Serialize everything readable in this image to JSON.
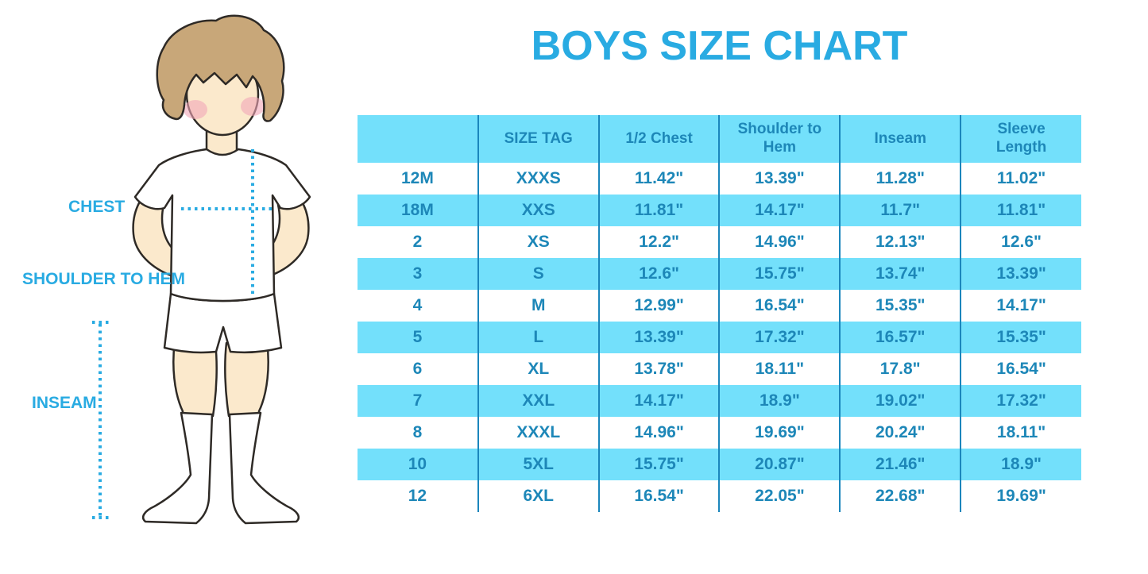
{
  "title": "BOYS SIZE CHART",
  "figure": {
    "labels": {
      "chest": "CHEST",
      "shoulder_to_hem": "SHOULDER TO HEM",
      "inseam": "INSEAM"
    }
  },
  "colors": {
    "accent_blue": "#29ABE2",
    "table_stripe": "#73E0FB",
    "table_text": "#1D87B8",
    "table_divider": "#1B86BC",
    "hair": "#C8A779",
    "skin": "#FBE9CC",
    "blush": "#F2A7B7"
  },
  "chart_data": {
    "type": "table",
    "title": "BOYS SIZE CHART",
    "columns": [
      "",
      "SIZE TAG",
      "1/2 Chest",
      "Shoulder to Hem",
      "Inseam",
      "Sleeve Length"
    ],
    "rows": [
      [
        "12M",
        "XXXS",
        "11.42\"",
        "13.39\"",
        "11.28\"",
        "11.02\""
      ],
      [
        "18M",
        "XXS",
        "11.81\"",
        "14.17\"",
        "11.7\"",
        "11.81\""
      ],
      [
        "2",
        "XS",
        "12.2\"",
        "14.96\"",
        "12.13\"",
        "12.6\""
      ],
      [
        "3",
        "S",
        "12.6\"",
        "15.75\"",
        "13.74\"",
        "13.39\""
      ],
      [
        "4",
        "M",
        "12.99\"",
        "16.54\"",
        "15.35\"",
        "14.17\""
      ],
      [
        "5",
        "L",
        "13.39\"",
        "17.32\"",
        "16.57\"",
        "15.35\""
      ],
      [
        "6",
        "XL",
        "13.78\"",
        "18.11\"",
        "17.8\"",
        "16.54\""
      ],
      [
        "7",
        "XXL",
        "14.17\"",
        "18.9\"",
        "19.02\"",
        "17.32\""
      ],
      [
        "8",
        "XXXL",
        "14.96\"",
        "19.69\"",
        "20.24\"",
        "18.11\""
      ],
      [
        "10",
        "5XL",
        "15.75\"",
        "20.87\"",
        "21.46\"",
        "18.9\""
      ],
      [
        "12",
        "6XL",
        "16.54\"",
        "22.05\"",
        "22.68\"",
        "19.69\""
      ]
    ],
    "layout": {
      "striped_rows": "alternating, starting with white; header row solid stripe color",
      "grid": "vertical dividers between columns only"
    }
  }
}
